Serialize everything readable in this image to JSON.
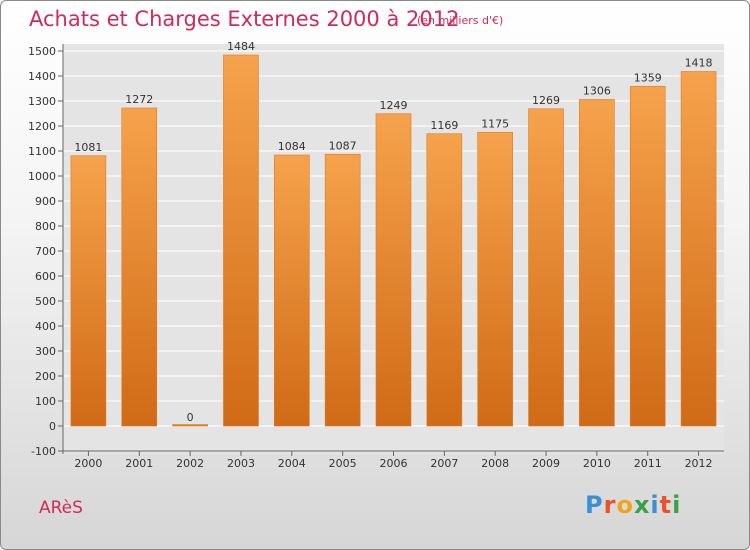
{
  "title": "Achats et Charges Externes 2000 à 2012",
  "subtitle": "(en milliers d'€)",
  "place": "ARèS",
  "logo": {
    "letters": [
      "P",
      "r",
      "o",
      "x",
      "i",
      "t",
      "i"
    ],
    "colors": [
      "#3a8fd6",
      "#e8532b",
      "#f1a51c",
      "#3aa04a",
      "#3a8fd6",
      "#e8532b",
      "#3aa04a"
    ]
  },
  "chart_data": {
    "type": "bar",
    "categories": [
      "2000",
      "2001",
      "2002",
      "2003",
      "2004",
      "2005",
      "2006",
      "2007",
      "2008",
      "2009",
      "2010",
      "2011",
      "2012"
    ],
    "values": [
      1081,
      1272,
      0,
      1484,
      1084,
      1087,
      1249,
      1169,
      1175,
      1269,
      1306,
      1359,
      1418
    ],
    "ylim": [
      -100,
      1500
    ],
    "yticks": [
      "-100",
      "0",
      "100",
      "200",
      "300",
      "400",
      "500",
      "600",
      "700",
      "800",
      "900",
      "1000",
      "1100",
      "1200",
      "1300",
      "1400",
      "1500"
    ],
    "grid": true,
    "colors": {
      "bar_top": "#f6a24c",
      "bar_bottom": "#d06a16",
      "text": "#333333",
      "grid": "#ffffff"
    }
  }
}
